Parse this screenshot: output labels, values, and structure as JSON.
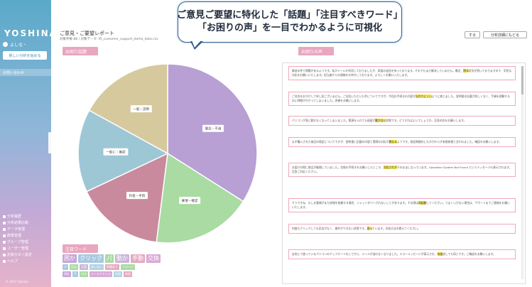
{
  "callout": {
    "line1": "ご意見ご要望に特化した「話題」「注目すべきワード」",
    "line2": "「お困りの声」を一目でわかるように可視化"
  },
  "sidebar": {
    "logo": "YOSHINA",
    "user": "よしな・",
    "new_button": "新しい分析を始める",
    "section": "お問い合わせ",
    "nav": [
      {
        "label": "分析履歴"
      },
      {
        "label": "分析結果比較"
      },
      {
        "label": "データ管理"
      },
      {
        "label": "辞書管理"
      },
      {
        "label": "グループ管理"
      },
      {
        "label": "ユーザー管理"
      },
      {
        "label": "お知らせ / 設定"
      },
      {
        "label": "ヘルプ"
      }
    ],
    "copyright": "© 2021 Yoshina"
  },
  "header": {
    "title": "ご意見・ご要望レポート",
    "breadcrumb": "対象件数 88 / 対象データ: IR_customer_support_demo_data.csv",
    "btn_right1": "する",
    "btn_right2": "分析詳細にもどる"
  },
  "topics": {
    "header": "お困り話題",
    "slices": [
      {
        "label": "懸念・不満",
        "value": 34,
        "color": "#b89fd4"
      },
      {
        "label": "郵便・確認",
        "value": 18,
        "color": "#a9dba3"
      },
      {
        "label": "料金・手続",
        "value": 16,
        "color": "#c98a9d"
      },
      {
        "label": "一般に・確認",
        "value": 15,
        "color": "#9ec7d6"
      },
      {
        "label": "一般・説明",
        "value": 17,
        "color": "#d6c99e"
      }
    ]
  },
  "keywords": {
    "header": "注目ワード",
    "row1": [
      {
        "text": "困か",
        "color": "#c9a3d8"
      },
      {
        "text": "クリック",
        "color": "#a8c9e0"
      },
      {
        "text": "パ",
        "color": "#a9dba3"
      },
      {
        "text": "動か",
        "color": "#c9b6d8"
      },
      {
        "text": "手動",
        "color": "#e4a8c0"
      },
      {
        "text": "交換",
        "color": "#d8a9d6"
      }
    ],
    "row2": [
      {
        "text": "ア",
        "color": "#a8c9e0"
      },
      {
        "text": "反応",
        "color": "#a9dba3"
      },
      {
        "text": "大変",
        "color": "#c9b6d8"
      },
      {
        "text": "あいまい",
        "color": "#b2d3e0"
      },
      {
        "text": "問題あり",
        "color": "#e4a8c0"
      },
      {
        "text": "イメージ",
        "color": "#a9dba3"
      }
    ],
    "row3": [
      {
        "text": "保証",
        "color": "#c9a3d8"
      },
      {
        "text": "不",
        "color": "#a8c9e0"
      },
      {
        "text": "付き",
        "color": "#a9dba3"
      },
      {
        "text": "メールアドレス",
        "color": "#d8a9d6"
      },
      {
        "text": "処理",
        "color": "#b2d3e0"
      },
      {
        "text": "修理",
        "color": "#e4a8c0"
      }
    ]
  },
  "voices": {
    "header": "お困りの声",
    "items": [
      {
        "pre": "郵送の件で問題があるようです。私がメールを利用しておりましたが、再度の返信を待っております。それでもまだ解決していません。最近、",
        "hl": "困る",
        "post": "状況が続いておりますので、早急な対応をお願いいたします。担当者からの連絡をお待ちしております。よろしくお願いいたします。"
      },
      {
        "pre": "ご対応をおかけして申し訳ございません。ご対応いただいた件についてですが、今回の手続きの内容が",
        "hl": "分かりにくい",
        "post": "ように感じました。説明書の記載が詳しくなく、手順を理解するのに時間がかかってしまいました。改善をお願いします。"
      },
      {
        "pre": "パソコンが急に動かなくなってしまいました。電源を入れても画面が",
        "hl": "動かない",
        "post": "状態です。どうすればよいでしょうか。至急対応をお願いします。"
      },
      {
        "pre": "まず購入された商品の保証についてですが、説明書に記載の内容と実際の対応が",
        "hl": "異なる",
        "post": "ようです。保証期間内にもかかわらず有償修理と言われました。確認をお願いします。"
      },
      {
        "pre": "お届けの際に商品が破損していました。交換の手続きをお願いしたところ、",
        "hl": "対応されず",
        "post": "そのままになっています。Operation System Not Found というメッセージも表示されます。至急ご対応ください。"
      },
      {
        "pre": "そうですね、もしお客様がまた修理を依頼する場合、シャットダウンされないことがあります。その際は",
        "hl": "再起動",
        "post": "してください。うまくいかない場合は、サポートまでご連絡をお願いいたします。"
      },
      {
        "pre": "何度もクリックしても反応がなく、操作ができない状態です。",
        "hl": "困っ",
        "post": "ています。対処方法を教えてください。"
      },
      {
        "pre": "自宅にて使っているパソコンのアップデートをしてから、メールが送れなくなりました。エラーメッセージが表示され、",
        "hl": "何度",
        "post": "試しても同じです。ご確認をお願いします。"
      }
    ]
  }
}
